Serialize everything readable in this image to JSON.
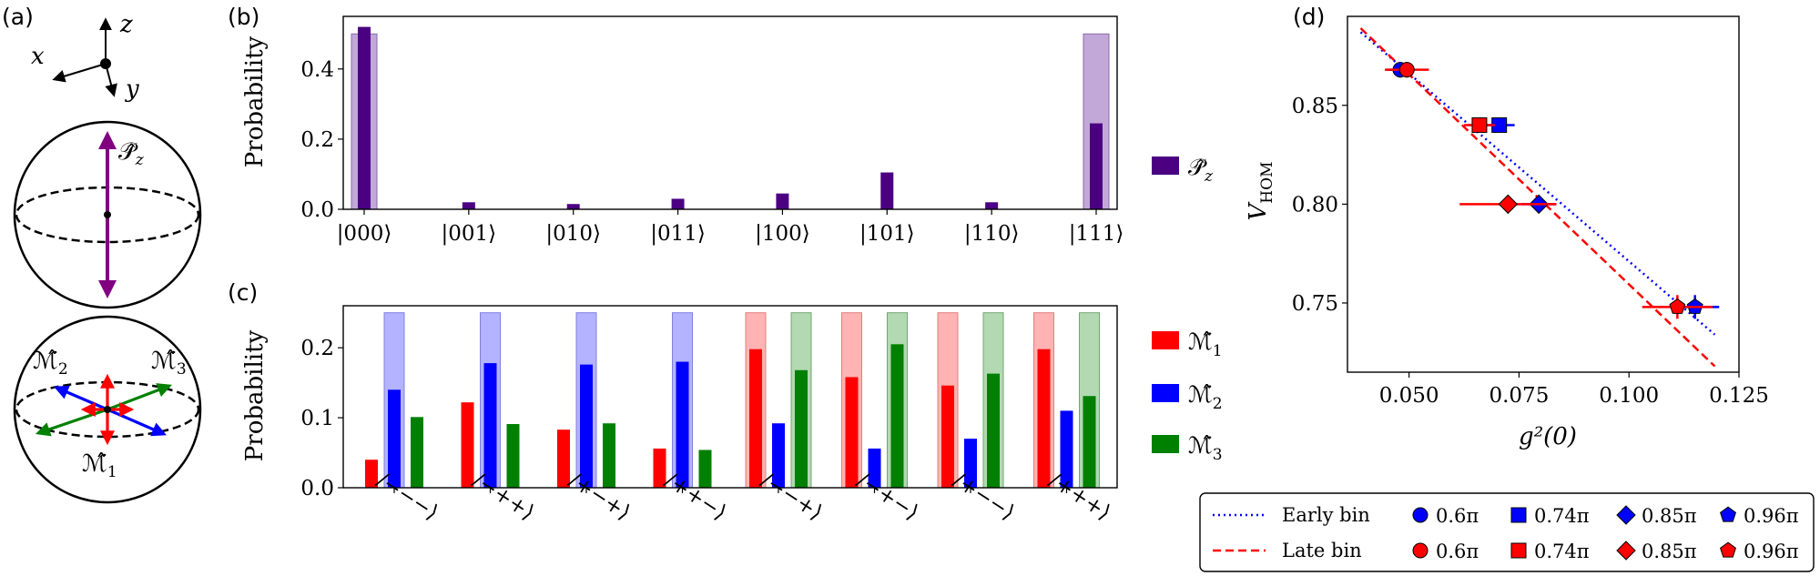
{
  "panels": {
    "a": "(a)",
    "b": "(b)",
    "c": "(c)",
    "d": "(d)"
  },
  "colors": {
    "purple": "#4b0082",
    "purple_light": "#c2a8d9",
    "red": "#ff0000",
    "red_light": "#ffb3b3",
    "blue": "#0000ff",
    "blue_light": "#b3b3ff",
    "green": "#008000",
    "green_light": "#b3d9b3"
  },
  "sphere": {
    "axis_x": "x",
    "axis_y": "y",
    "axis_z": "z",
    "op_pz": "𝒫̂",
    "op_pz_sub": "z",
    "op_m": "ℳ̂",
    "m1_sub": "1",
    "m2_sub": "2",
    "m3_sub": "3"
  },
  "chart_data": [
    {
      "id": "b",
      "type": "bar",
      "ylabel": "Probability",
      "ylim": [
        0,
        0.55
      ],
      "yticks": [
        "0.0",
        "0.2",
        "0.4"
      ],
      "categories": [
        "|000⟩",
        "|001⟩",
        "|010⟩",
        "|011⟩",
        "|100⟩",
        "|101⟩",
        "|110⟩",
        "|111⟩"
      ],
      "series": [
        {
          "name": "𝒫̂",
          "name_sub": "z",
          "role": "measured",
          "values": [
            0.52,
            0.02,
            0.015,
            0.03,
            0.045,
            0.105,
            0.02,
            0.245
          ]
        },
        {
          "role": "ideal",
          "values": [
            0.5,
            0,
            0,
            0,
            0,
            0,
            0,
            0.5
          ]
        }
      ]
    },
    {
      "id": "c",
      "type": "bar",
      "ylabel": "Probability",
      "ylim": [
        0,
        0.26
      ],
      "yticks": [
        "0.0",
        "0.1",
        "0.2"
      ],
      "categories": [
        "/−−−⟩",
        "/−++⟩",
        "/+−+⟩",
        "/++−⟩",
        "/−−+⟩",
        "/−+−⟩",
        "/+−−⟩",
        "/+++⟩"
      ],
      "series": [
        {
          "name": "ℳ̂",
          "name_sub": "1",
          "values": [
            0.04,
            0.122,
            0.083,
            0.056,
            0.198,
            0.158,
            0.146,
            0.198
          ],
          "ideal": [
            0,
            0,
            0,
            0,
            0.25,
            0.25,
            0.25,
            0.25
          ]
        },
        {
          "name": "ℳ̂",
          "name_sub": "2",
          "values": [
            0.14,
            0.178,
            0.176,
            0.18,
            0.092,
            0.056,
            0.07,
            0.11
          ],
          "ideal": [
            0.25,
            0.25,
            0.25,
            0.25,
            0,
            0,
            0,
            0
          ]
        },
        {
          "name": "ℳ̂",
          "name_sub": "3",
          "values": [
            0.101,
            0.091,
            0.092,
            0.054,
            0.168,
            0.205,
            0.163,
            0.131
          ],
          "ideal": [
            0,
            0,
            0,
            0,
            0.25,
            0.25,
            0.25,
            0.25
          ]
        }
      ]
    },
    {
      "id": "d",
      "type": "scatter",
      "xlabel": "g²(0)",
      "ylabel": "V",
      "ylabel_sub": "HOM",
      "xlim": [
        0.036,
        0.125
      ],
      "ylim": [
        0.715,
        0.895
      ],
      "xticks": [
        "0.050",
        "0.075",
        "0.100",
        "0.125"
      ],
      "xtick_values": [
        0.05,
        0.075,
        0.1,
        0.125
      ],
      "yticks": [
        "0.75",
        "0.80",
        "0.85"
      ],
      "ytick_values": [
        0.75,
        0.8,
        0.85
      ],
      "fits": [
        {
          "name": "Early bin",
          "style": "dotted",
          "color": "blue",
          "x": [
            0.039,
            0.1195
          ],
          "y": [
            0.887,
            0.734
          ]
        },
        {
          "name": "Late bin",
          "style": "dashed",
          "color": "red",
          "x": [
            0.039,
            0.1195
          ],
          "y": [
            0.889,
            0.718
          ]
        }
      ],
      "series": [
        {
          "bin": "early",
          "name": "0.6π",
          "marker": "circle",
          "x": 0.048,
          "y": 0.868,
          "xerr": 0.003,
          "yerr": 0.004
        },
        {
          "bin": "early",
          "name": "0.74π",
          "marker": "square",
          "x": 0.0705,
          "y": 0.84,
          "xerr": 0.0035,
          "yerr": 0.003
        },
        {
          "bin": "early",
          "name": "0.85π",
          "marker": "diamond",
          "x": 0.0795,
          "y": 0.8,
          "xerr": 0.004,
          "yerr": 0.003
        },
        {
          "bin": "early",
          "name": "0.96π",
          "marker": "pentagon",
          "x": 0.115,
          "y": 0.748,
          "xerr": 0.0055,
          "yerr": 0.006
        },
        {
          "bin": "late",
          "name": "0.6π",
          "marker": "circle",
          "x": 0.0495,
          "y": 0.868,
          "xerr": 0.005,
          "yerr": 0.004
        },
        {
          "bin": "late",
          "name": "0.74π",
          "marker": "square",
          "x": 0.066,
          "y": 0.84,
          "xerr": 0.0035,
          "yerr": 0.003
        },
        {
          "bin": "late",
          "name": "0.85π",
          "marker": "diamond",
          "x": 0.0725,
          "y": 0.8,
          "xerr": 0.011,
          "yerr": 0.003
        },
        {
          "bin": "late",
          "name": "0.96π",
          "marker": "pentagon",
          "x": 0.111,
          "y": 0.748,
          "xerr": 0.008,
          "yerr": 0.006
        }
      ],
      "legend": {
        "early_label": "Early bin",
        "late_label": "Late bin",
        "items": [
          "0.6π",
          "0.74π",
          "0.85π",
          "0.96π"
        ]
      }
    }
  ]
}
